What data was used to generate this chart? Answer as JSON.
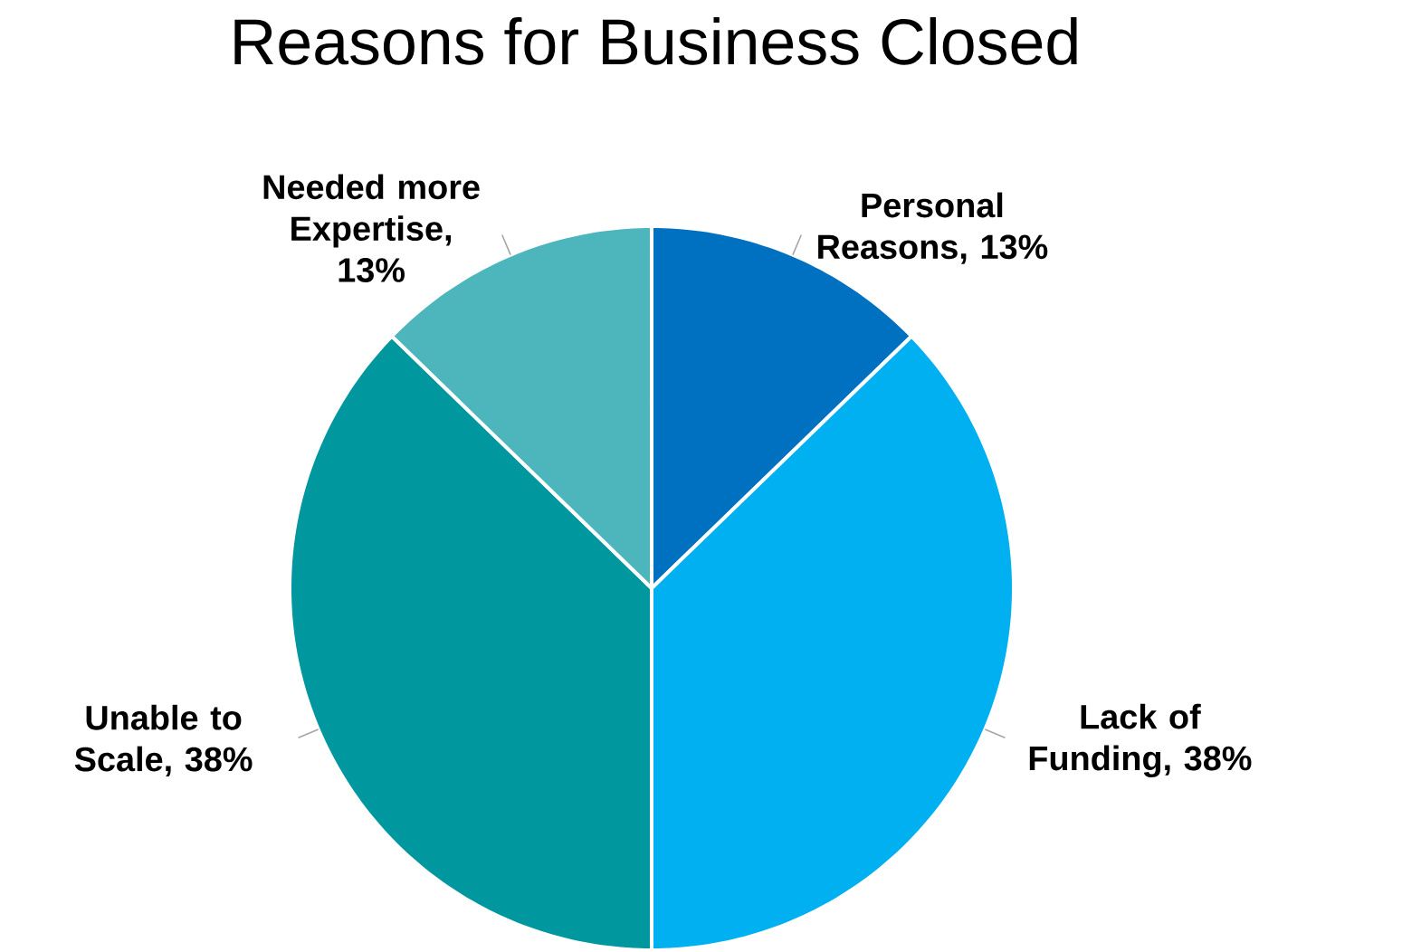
{
  "chart_data": {
    "type": "pie",
    "title": "Reasons for Business Closed",
    "categories": [
      "Personal Reasons",
      "Lack of Funding",
      "Unable to Scale",
      "Needed more Expertise"
    ],
    "values": [
      13,
      38,
      38,
      13
    ],
    "value_labels": [
      ", 13%",
      ", 38%",
      ", 38%",
      ", 13%"
    ],
    "colors": [
      "#0070c0",
      "#00b0f0",
      "#00979f",
      "#4db6bc"
    ]
  }
}
